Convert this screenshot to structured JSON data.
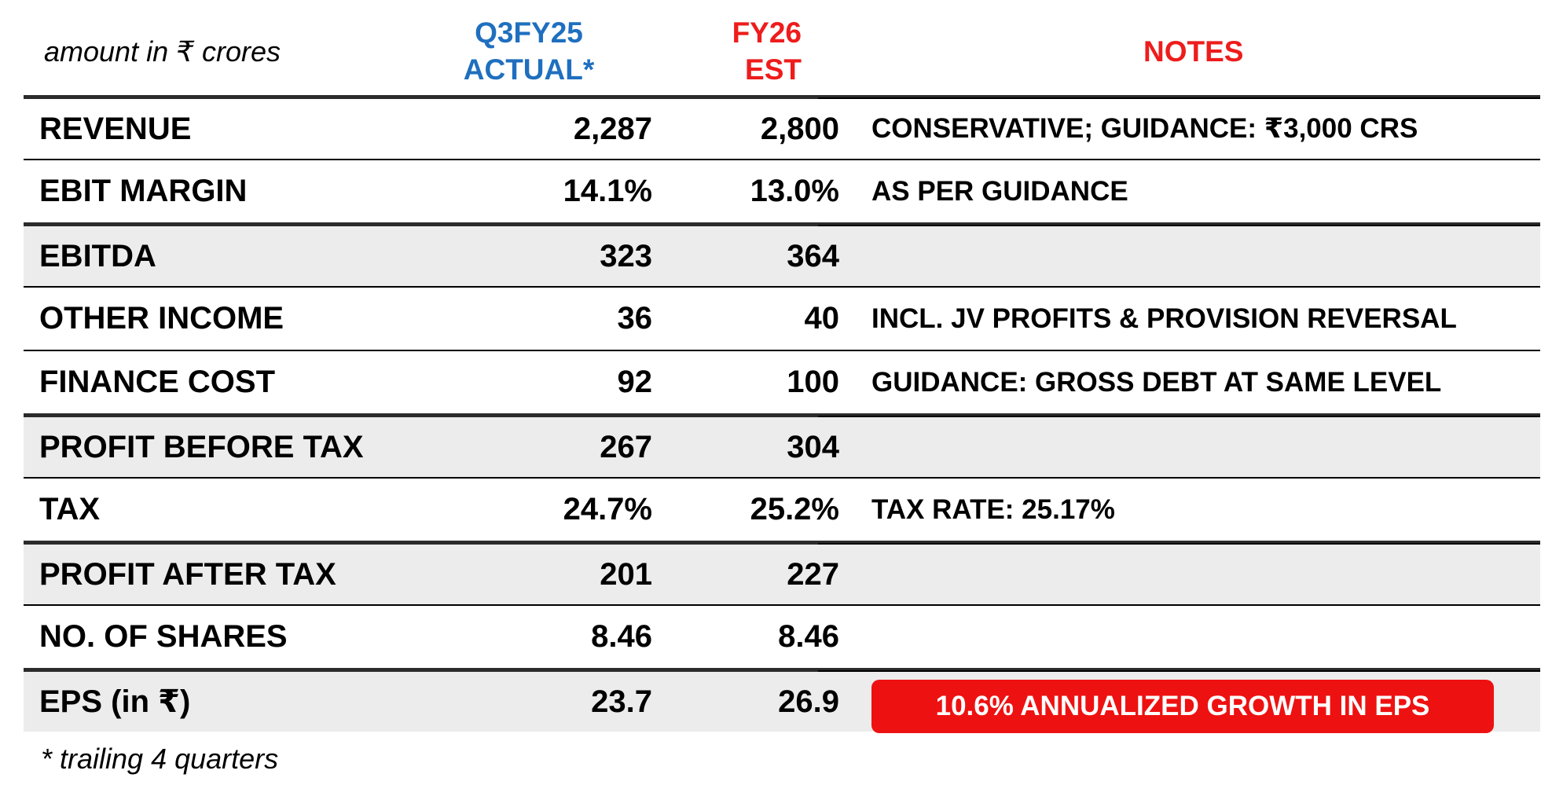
{
  "header": {
    "units": "amount in ₹ crores",
    "col_q3_line1": "Q3FY25",
    "col_q3_line2": "ACTUAL*",
    "col_fy_line1": "FY26",
    "col_fy_line2": "EST",
    "col_notes": "NOTES"
  },
  "rows": [
    {
      "label": "REVENUE",
      "q3": "2,287",
      "fy": "2,800",
      "note": "CONSERVATIVE; GUIDANCE: ₹3,000 CRS"
    },
    {
      "label": "EBIT MARGIN",
      "q3": "14.1%",
      "fy": "13.0%",
      "note": "AS PER GUIDANCE"
    },
    {
      "label": "EBITDA",
      "q3": "323",
      "fy": "364",
      "note": ""
    },
    {
      "label": "OTHER INCOME",
      "q3": "36",
      "fy": "40",
      "note": "INCL. JV PROFITS & PROVISION REVERSAL"
    },
    {
      "label": "FINANCE COST",
      "q3": "92",
      "fy": "100",
      "note": "GUIDANCE: GROSS DEBT AT SAME LEVEL"
    },
    {
      "label": "PROFIT BEFORE TAX",
      "q3": "267",
      "fy": "304",
      "note": ""
    },
    {
      "label": "TAX",
      "q3": "24.7%",
      "fy": "25.2%",
      "note": "TAX RATE: 25.17%"
    },
    {
      "label": "PROFIT AFTER TAX",
      "q3": "201",
      "fy": "227",
      "note": ""
    },
    {
      "label": "NO. OF SHARES",
      "q3": "8.46",
      "fy": "8.46",
      "note": ""
    },
    {
      "label": "EPS (in ₹)",
      "q3": "23.7",
      "fy": "26.9",
      "note": ""
    }
  ],
  "eps_badge": "10.6% ANNUALIZED GROWTH IN EPS",
  "footnote": "* trailing 4 quarters",
  "colors": {
    "q3_header": "#1f6fbf",
    "fy_header": "#ee1c1c",
    "notes_header": "#ee1c1c",
    "badge_bg": "#ee1111",
    "shaded_row": "#ececec"
  }
}
